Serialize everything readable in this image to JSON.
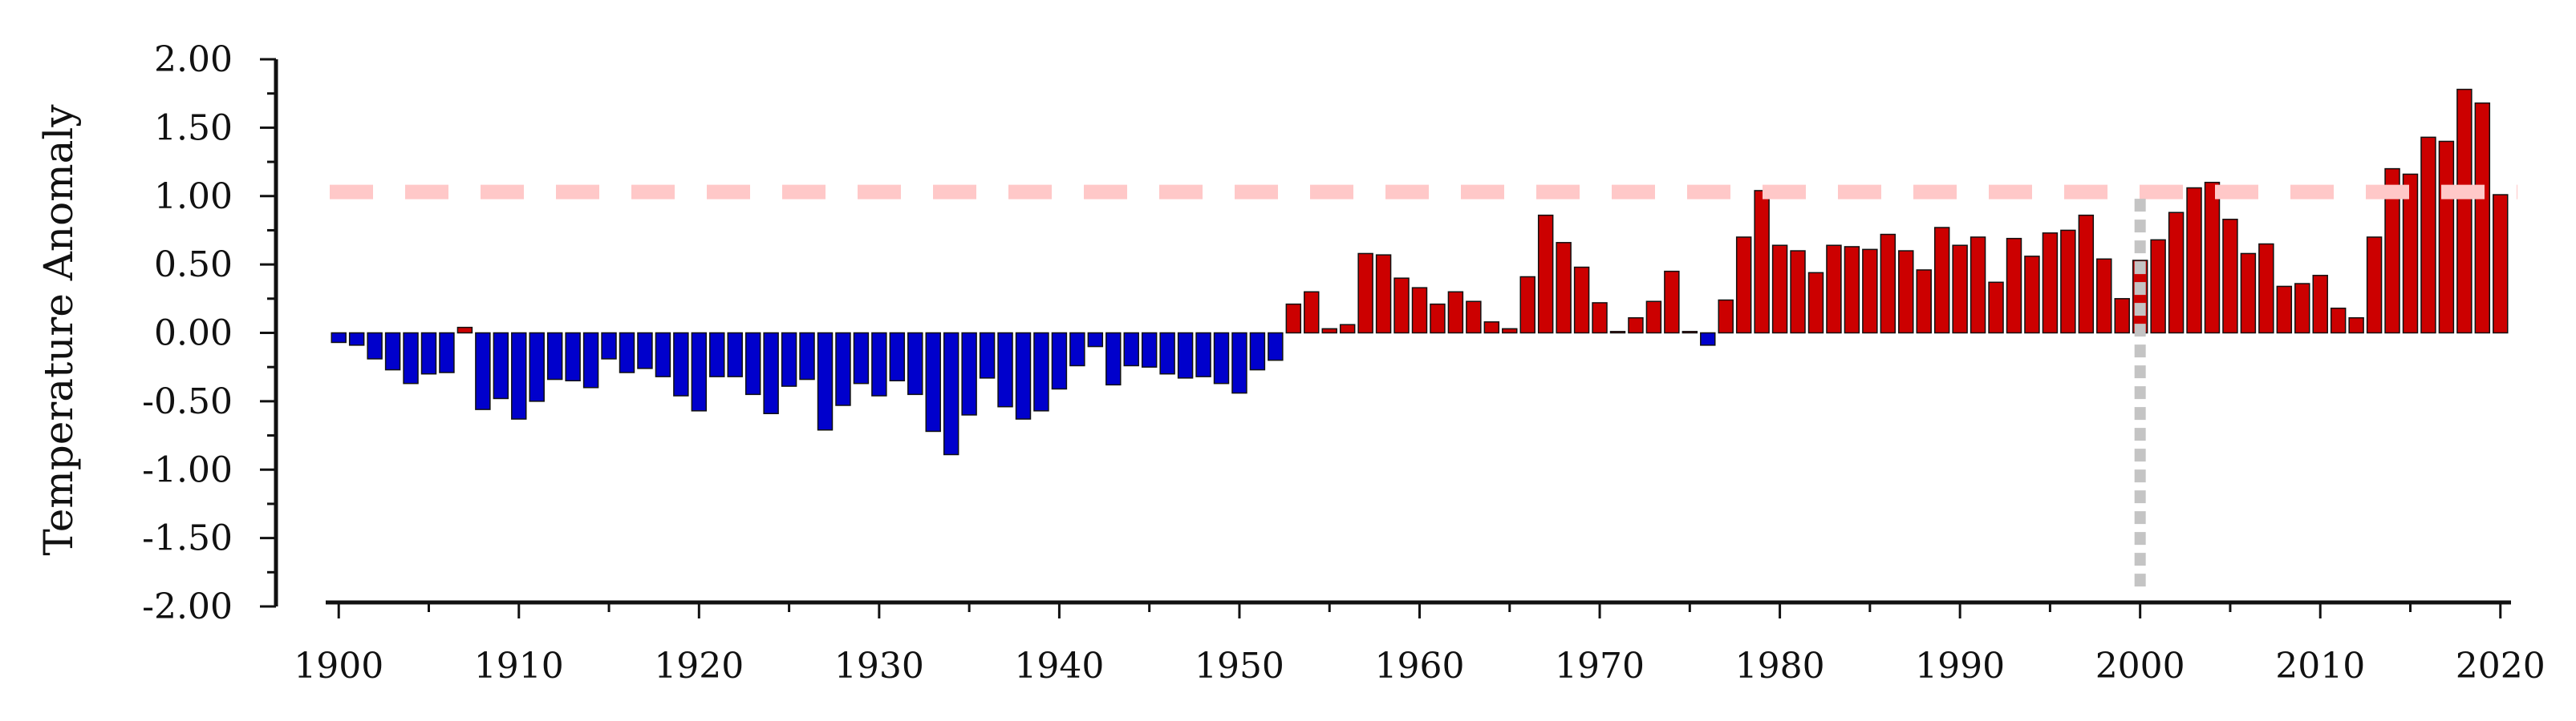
{
  "chart_data": {
    "type": "bar",
    "title": "",
    "xlabel": "",
    "ylabel": "Temperature Anomaly",
    "xlim": [
      1899.5,
      2020.5
    ],
    "ylim": [
      -2.0,
      2.0
    ],
    "x_ticks": [
      "1900",
      "1910",
      "1920",
      "1930",
      "1940",
      "1950",
      "1960",
      "1970",
      "1980",
      "1990",
      "2000",
      "2010",
      "2020"
    ],
    "y_ticks": [
      "2.00",
      "1.50",
      "1.00",
      "0.50",
      "0.00",
      "-0.50",
      "-1.00",
      "-1.50",
      "-2.00"
    ],
    "grid": false,
    "colors": {
      "positive": "#cc0000",
      "negative": "#0000cc",
      "bar_edge": "#111111",
      "threshold_line": "#ffc8c8",
      "reference_line": "#c4c4c4"
    },
    "threshold_y": 1.03,
    "reference_x": 2000,
    "x": [
      1900,
      1901,
      1902,
      1903,
      1904,
      1905,
      1906,
      1907,
      1908,
      1909,
      1910,
      1911,
      1912,
      1913,
      1914,
      1915,
      1916,
      1917,
      1918,
      1919,
      1920,
      1921,
      1922,
      1923,
      1924,
      1925,
      1926,
      1927,
      1928,
      1929,
      1930,
      1931,
      1932,
      1933,
      1934,
      1935,
      1936,
      1937,
      1938,
      1939,
      1940,
      1941,
      1942,
      1943,
      1944,
      1945,
      1946,
      1947,
      1948,
      1949,
      1950,
      1951,
      1952,
      1953,
      1954,
      1955,
      1956,
      1957,
      1958,
      1959,
      1960,
      1961,
      1962,
      1963,
      1964,
      1965,
      1966,
      1967,
      1968,
      1969,
      1970,
      1971,
      1972,
      1973,
      1974,
      1975,
      1976,
      1977,
      1978,
      1979,
      1980,
      1981,
      1982,
      1983,
      1984,
      1985,
      1986,
      1987,
      1988,
      1989,
      1990,
      1991,
      1992,
      1993,
      1994,
      1995,
      1996,
      1997,
      1998,
      1999,
      2000,
      2001,
      2002,
      2003,
      2004,
      2005,
      2006,
      2007,
      2008,
      2009,
      2010,
      2011,
      2012,
      2013,
      2014,
      2015,
      2016,
      2017,
      2018,
      2019,
      2020
    ],
    "values": [
      -0.07,
      -0.09,
      -0.19,
      -0.27,
      -0.37,
      -0.3,
      -0.29,
      0.04,
      -0.56,
      -0.48,
      -0.63,
      -0.5,
      -0.34,
      -0.35,
      -0.4,
      -0.19,
      -0.29,
      -0.26,
      -0.32,
      -0.46,
      -0.57,
      -0.32,
      -0.32,
      -0.45,
      -0.59,
      -0.39,
      -0.34,
      -0.71,
      -0.53,
      -0.37,
      -0.46,
      -0.35,
      -0.45,
      -0.72,
      -0.89,
      -0.6,
      -0.33,
      -0.54,
      -0.63,
      -0.57,
      -0.41,
      -0.24,
      -0.1,
      -0.38,
      -0.24,
      -0.25,
      -0.3,
      -0.33,
      -0.32,
      -0.37,
      -0.44,
      -0.27,
      -0.2,
      0.21,
      0.3,
      0.03,
      0.06,
      0.58,
      0.57,
      0.4,
      0.33,
      0.21,
      0.3,
      0.23,
      0.08,
      0.03,
      0.41,
      0.86,
      0.66,
      0.48,
      0.22,
      0.01,
      0.11,
      0.23,
      0.45,
      0.01,
      -0.09,
      0.24,
      0.7,
      1.04,
      0.64,
      0.6,
      0.44,
      0.64,
      0.63,
      0.61,
      0.72,
      0.6,
      0.46,
      0.77,
      0.64,
      0.7,
      0.37,
      0.69,
      0.56,
      0.73,
      0.75,
      0.86,
      0.54,
      0.25,
      0.53,
      0.68,
      0.88,
      1.06,
      1.1,
      0.83,
      0.58,
      0.65,
      0.34,
      0.36,
      0.42,
      0.18,
      0.11,
      0.7,
      1.2,
      1.16,
      1.43,
      1.4,
      1.78,
      1.68,
      1.01
    ]
  }
}
